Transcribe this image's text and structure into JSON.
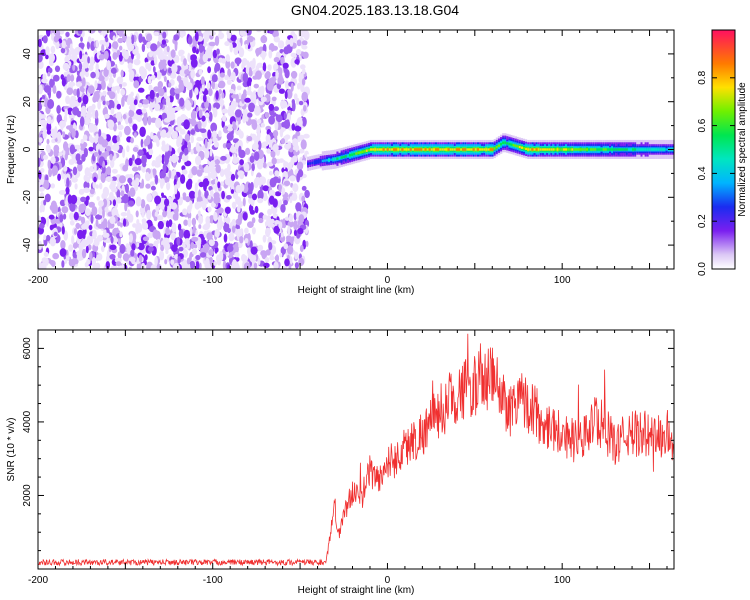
{
  "title": "GN04.2025.183.13.18.G04",
  "chart_data": [
    {
      "type": "heatmap",
      "xlabel": "Height of straight line (km)",
      "ylabel": "Frequency (Hz)",
      "xlim": [
        -200,
        164
      ],
      "ylim": [
        -50,
        50
      ],
      "xticks": [
        -200,
        -100,
        0,
        100
      ],
      "yticks": [
        -40,
        -20,
        0,
        20,
        40
      ],
      "colorbar": {
        "label": "Normalized spectral amplitude",
        "range": [
          0,
          1
        ],
        "ticks": [
          "0.0",
          "0.2",
          "0.4",
          "0.6",
          "0.8"
        ]
      },
      "noise_region": {
        "x_range": [
          -200,
          -46
        ],
        "freq_range": [
          -50,
          50
        ],
        "amplitude": "low (0.0-0.15)"
      },
      "signal_track": {
        "x": [
          -46,
          -40,
          -30,
          -20,
          -10,
          0,
          20,
          40,
          60,
          66,
          80,
          100,
          120,
          140,
          164
        ],
        "freq": [
          -6,
          -5,
          -4,
          -2,
          0,
          0,
          0,
          0,
          0,
          3,
          0,
          0,
          0,
          0,
          0
        ],
        "peak_amplitude": [
          0.3,
          0.4,
          0.55,
          0.7,
          0.85,
          0.9,
          0.95,
          0.9,
          0.9,
          0.6,
          0.9,
          0.85,
          0.7,
          0.6,
          0.5
        ]
      }
    },
    {
      "type": "line",
      "xlabel": "Height of straight line (km)",
      "ylabel": "SNR (10 * v/v)",
      "xlim": [
        -200,
        164
      ],
      "ylim": [
        0,
        6500
      ],
      "xticks": [
        -200,
        -100,
        0,
        100
      ],
      "yticks": [
        2000,
        4000,
        6000
      ],
      "series": [
        {
          "color": "#f03030",
          "x": [
            -200,
            -150,
            -100,
            -50,
            -35,
            -32,
            -30,
            -28,
            -25,
            -20,
            -15,
            -10,
            -5,
            0,
            5,
            10,
            20,
            30,
            40,
            50,
            55,
            60,
            70,
            75,
            80,
            90,
            100,
            110,
            120,
            130,
            140,
            150,
            160,
            164
          ],
          "y": [
            150,
            150,
            150,
            150,
            150,
            1200,
            1700,
            900,
            1500,
            2100,
            1900,
            2700,
            2400,
            2900,
            3000,
            3300,
            3700,
            4300,
            4800,
            5000,
            5100,
            5200,
            4300,
            4800,
            4500,
            4000,
            3700,
            3400,
            4100,
            3400,
            3700,
            3600,
            3600,
            3400
          ]
        }
      ]
    }
  ]
}
